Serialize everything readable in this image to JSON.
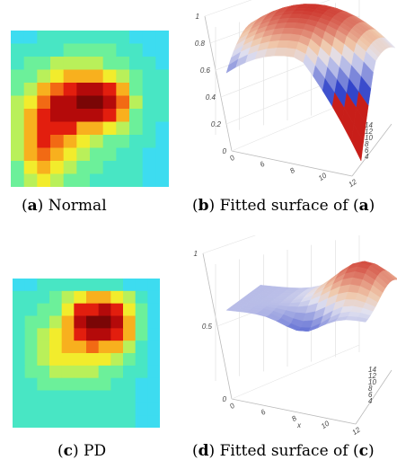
{
  "panels": [
    {
      "id": "a",
      "caption_letter": "a",
      "caption_text": " Normal",
      "colorscale": [
        "#3ddcf0",
        "#48e6c4",
        "#6cf09a",
        "#b9f05a",
        "#f2ec2c",
        "#f8b01e",
        "#f26a14",
        "#e21e0e",
        "#b40a0a",
        "#7a0606"
      ],
      "grid": [
        [
          0.0,
          0.05,
          0.1,
          0.1,
          0.1,
          0.1,
          0.1,
          0.1,
          0.1,
          0.05,
          0.0,
          0.0
        ],
        [
          0.1,
          0.15,
          0.15,
          0.15,
          0.2,
          0.2,
          0.2,
          0.2,
          0.15,
          0.1,
          0.05,
          0.0
        ],
        [
          0.15,
          0.2,
          0.2,
          0.3,
          0.3,
          0.3,
          0.3,
          0.25,
          0.2,
          0.15,
          0.1,
          0.05
        ],
        [
          0.2,
          0.25,
          0.3,
          0.45,
          0.5,
          0.55,
          0.55,
          0.45,
          0.3,
          0.2,
          0.15,
          0.1
        ],
        [
          0.25,
          0.3,
          0.55,
          0.7,
          0.8,
          0.85,
          0.85,
          0.75,
          0.5,
          0.25,
          0.15,
          0.1
        ],
        [
          0.3,
          0.45,
          0.7,
          0.85,
          0.9,
          0.95,
          0.95,
          0.85,
          0.65,
          0.3,
          0.15,
          0.1
        ],
        [
          0.35,
          0.55,
          0.8,
          0.9,
          0.85,
          0.9,
          0.85,
          0.75,
          0.5,
          0.25,
          0.15,
          0.1
        ],
        [
          0.35,
          0.6,
          0.8,
          0.8,
          0.75,
          0.6,
          0.5,
          0.4,
          0.3,
          0.2,
          0.1,
          0.05
        ],
        [
          0.35,
          0.6,
          0.75,
          0.7,
          0.55,
          0.4,
          0.3,
          0.25,
          0.2,
          0.15,
          0.1,
          0.05
        ],
        [
          0.3,
          0.55,
          0.65,
          0.55,
          0.4,
          0.3,
          0.25,
          0.2,
          0.15,
          0.1,
          0.05,
          0.05
        ],
        [
          0.25,
          0.45,
          0.55,
          0.45,
          0.3,
          0.25,
          0.2,
          0.15,
          0.15,
          0.1,
          0.05,
          0.05
        ],
        [
          0.2,
          0.35,
          0.4,
          0.35,
          0.25,
          0.2,
          0.15,
          0.15,
          0.1,
          0.1,
          0.05,
          0.05
        ]
      ]
    },
    {
      "id": "b",
      "caption_letter": "b",
      "caption_text": " Fitted surface of (",
      "caption_ref": "a",
      "caption_close": ")",
      "z_ticks": [
        "1",
        "0.8",
        "0.6",
        "0.4",
        "0.2",
        "0"
      ],
      "x_ticks": [
        "0",
        "6",
        "8",
        "10",
        "12"
      ],
      "y_ticks": [
        "14",
        "12",
        "10",
        "8",
        "6",
        "4"
      ],
      "x_label": ""
    },
    {
      "id": "c",
      "caption_letter": "c",
      "caption_text": " PD",
      "grid": [
        [
          0.05,
          0.05,
          0.1,
          0.1,
          0.1,
          0.1,
          0.1,
          0.1,
          0.1,
          0.05,
          0.05,
          0.0
        ],
        [
          0.1,
          0.1,
          0.15,
          0.2,
          0.3,
          0.4,
          0.5,
          0.55,
          0.45,
          0.3,
          0.15,
          0.05
        ],
        [
          0.1,
          0.15,
          0.2,
          0.25,
          0.45,
          0.75,
          0.8,
          0.85,
          0.75,
          0.45,
          0.2,
          0.05
        ],
        [
          0.15,
          0.2,
          0.25,
          0.35,
          0.55,
          0.85,
          0.95,
          0.95,
          0.85,
          0.5,
          0.2,
          0.05
        ],
        [
          0.15,
          0.2,
          0.3,
          0.4,
          0.55,
          0.8,
          0.9,
          0.9,
          0.8,
          0.5,
          0.2,
          0.05
        ],
        [
          0.15,
          0.2,
          0.3,
          0.45,
          0.5,
          0.6,
          0.65,
          0.6,
          0.5,
          0.35,
          0.15,
          0.05
        ],
        [
          0.15,
          0.2,
          0.3,
          0.4,
          0.45,
          0.45,
          0.45,
          0.4,
          0.3,
          0.2,
          0.1,
          0.05
        ],
        [
          0.15,
          0.2,
          0.25,
          0.3,
          0.3,
          0.3,
          0.3,
          0.25,
          0.2,
          0.15,
          0.1,
          0.05
        ],
        [
          0.15,
          0.15,
          0.2,
          0.2,
          0.2,
          0.2,
          0.2,
          0.2,
          0.15,
          0.1,
          0.05,
          0.05
        ],
        [
          0.1,
          0.15,
          0.15,
          0.15,
          0.15,
          0.15,
          0.15,
          0.15,
          0.1,
          0.1,
          0.05,
          0.05
        ],
        [
          0.1,
          0.1,
          0.15,
          0.15,
          0.15,
          0.15,
          0.15,
          0.1,
          0.1,
          0.1,
          0.05,
          0.05
        ],
        [
          0.1,
          0.1,
          0.1,
          0.1,
          0.1,
          0.1,
          0.1,
          0.1,
          0.1,
          0.1,
          0.05,
          0.05
        ]
      ]
    },
    {
      "id": "d",
      "caption_letter": "d",
      "caption_text": " Fitted surface of (",
      "caption_ref": "c",
      "caption_close": ")",
      "z_ticks": [
        "1",
        "0.5",
        "0"
      ],
      "x_ticks": [
        "0",
        "6",
        "8",
        "10",
        "12"
      ],
      "y_ticks": [
        "14",
        "12",
        "10",
        "8",
        "6",
        "4"
      ],
      "x_label": "x"
    }
  ]
}
